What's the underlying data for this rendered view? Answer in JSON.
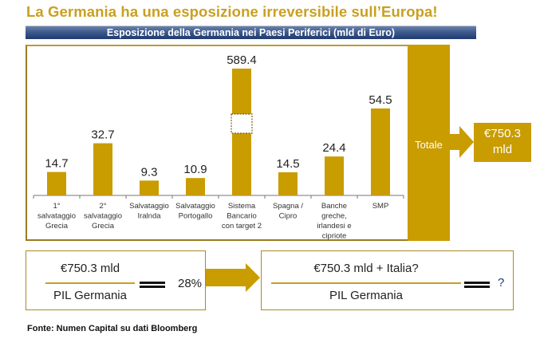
{
  "title": "La Germania ha una esposizione irreversibile sull’Europa!",
  "chart_data": {
    "type": "bar",
    "title": "Esposizione della Germania nei Paesi Periferici (mld di Euro)",
    "xlabel": "",
    "ylabel": "",
    "categories": [
      [
        "1°",
        "salvataggio",
        "Grecia"
      ],
      [
        "2°",
        "salvataggio",
        "Grecia"
      ],
      [
        "Salvataggio",
        "Iralnda"
      ],
      [
        "Salvataggio",
        "Portogallo"
      ],
      [
        "Sistema",
        "Bancario",
        "con target 2"
      ],
      [
        "Spagna /",
        "Cipro"
      ],
      [
        "Banche",
        "greche,",
        "irlandesi e",
        "cipriote"
      ],
      [
        "SMP"
      ]
    ],
    "values": [
      14.7,
      32.7,
      9.3,
      10.9,
      589.4,
      14.5,
      24.4,
      54.5
    ],
    "value_labels": [
      "14.7",
      "32.7",
      "9.3",
      "10.9",
      "589.4",
      "14.5",
      "24.4",
      "54.5"
    ],
    "broken_axis_category_index": 4,
    "grid": false,
    "bar_color": "#c99c00"
  },
  "total": {
    "label": "Totale",
    "value_line1": "€750.3",
    "value_line2": "mld"
  },
  "equation_left": {
    "numerator": "€750.3 mld",
    "denominator": "PIL Germania",
    "result": "28%"
  },
  "equation_right": {
    "numerator": "€750.3 mld + Italia?",
    "denominator": "PIL Germania",
    "result": "?"
  },
  "source": "Fonte: Numen Capital su dati Bloomberg",
  "colors": {
    "gold": "#c99c00",
    "title_gold": "#c9a020",
    "header_blue": "#1f3a6e",
    "question_blue": "#1f3a6e"
  }
}
